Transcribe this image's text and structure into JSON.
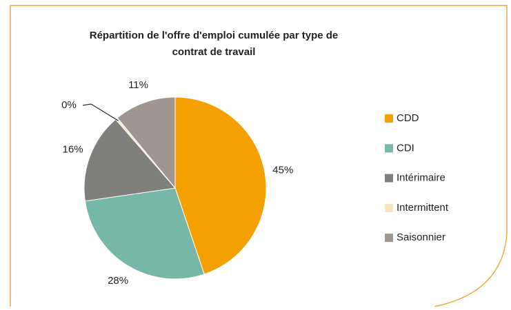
{
  "chart_data": {
    "type": "pie",
    "title": "Répartition de l'offre d'emploi cumulée par type de contrat de travail",
    "categories": [
      "CDD",
      "CDI",
      "Intérimaire",
      "Intermittent",
      "Saisonnier"
    ],
    "values": [
      45,
      28,
      16,
      0.4,
      11
    ],
    "value_labels": [
      "45%",
      "28%",
      "16%",
      "0%",
      "11%"
    ],
    "colors": [
      "#f4a000",
      "#76b7a8",
      "#7f807b",
      "#f6e6bf",
      "#a1958f"
    ],
    "legend": "right"
  }
}
